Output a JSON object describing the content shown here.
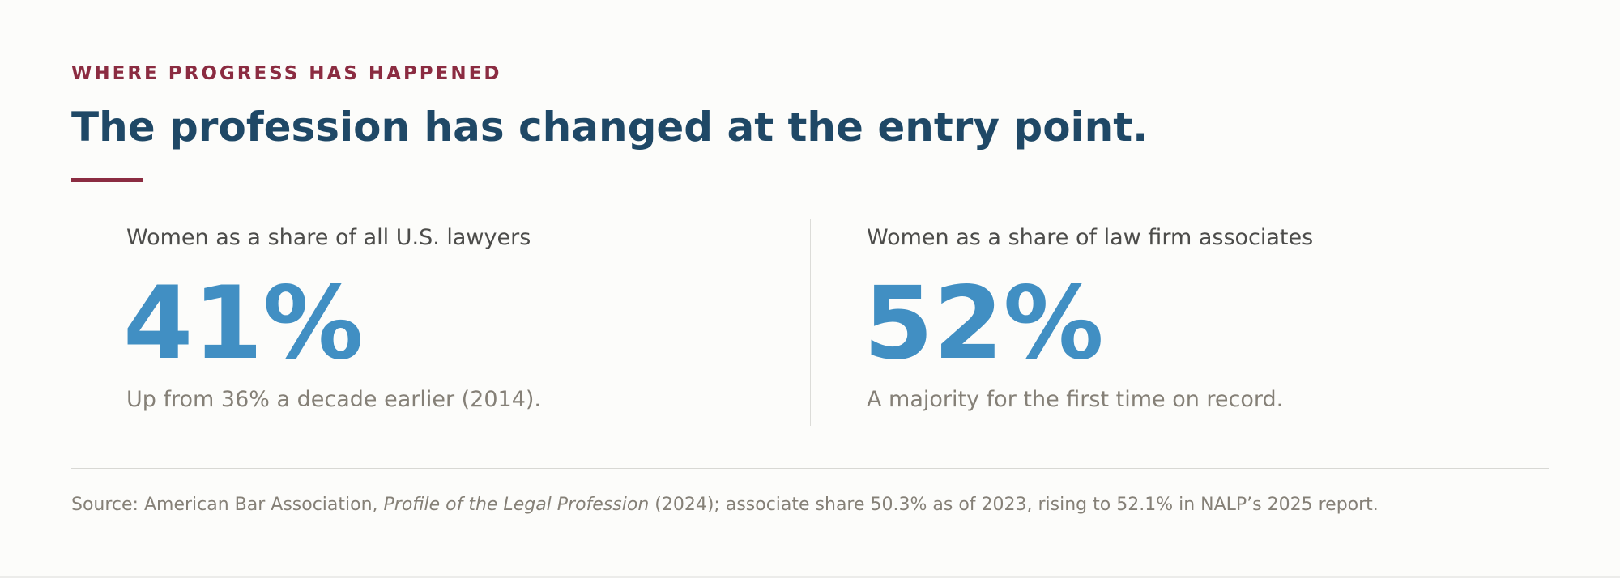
{
  "header": {
    "eyebrow": "WHERE PROGRESS HAS HAPPENED",
    "title": "The profession has changed at the entry point."
  },
  "stats": [
    {
      "label": "Women as a share of all U.S. lawyers",
      "value": "41%",
      "note": "Up from 36% a decade earlier (2014)."
    },
    {
      "label": "Women as a share of law firm associates",
      "value": "52%",
      "note": "A majority for the first time on record."
    }
  ],
  "source": {
    "prefix": "Source: American Bar Association, ",
    "title": "Profile of the Legal Profession",
    "suffix": " (2024); associate share 50.3% as of 2023, rising to 52.1% in NALP’s 2025 report."
  },
  "colors": {
    "accent": "#8b2c41",
    "heading": "#1f4866",
    "stat_value": "#418fc3",
    "label_text": "#4c4c4a",
    "muted_text": "#858077",
    "background": "#fcfcfa"
  }
}
